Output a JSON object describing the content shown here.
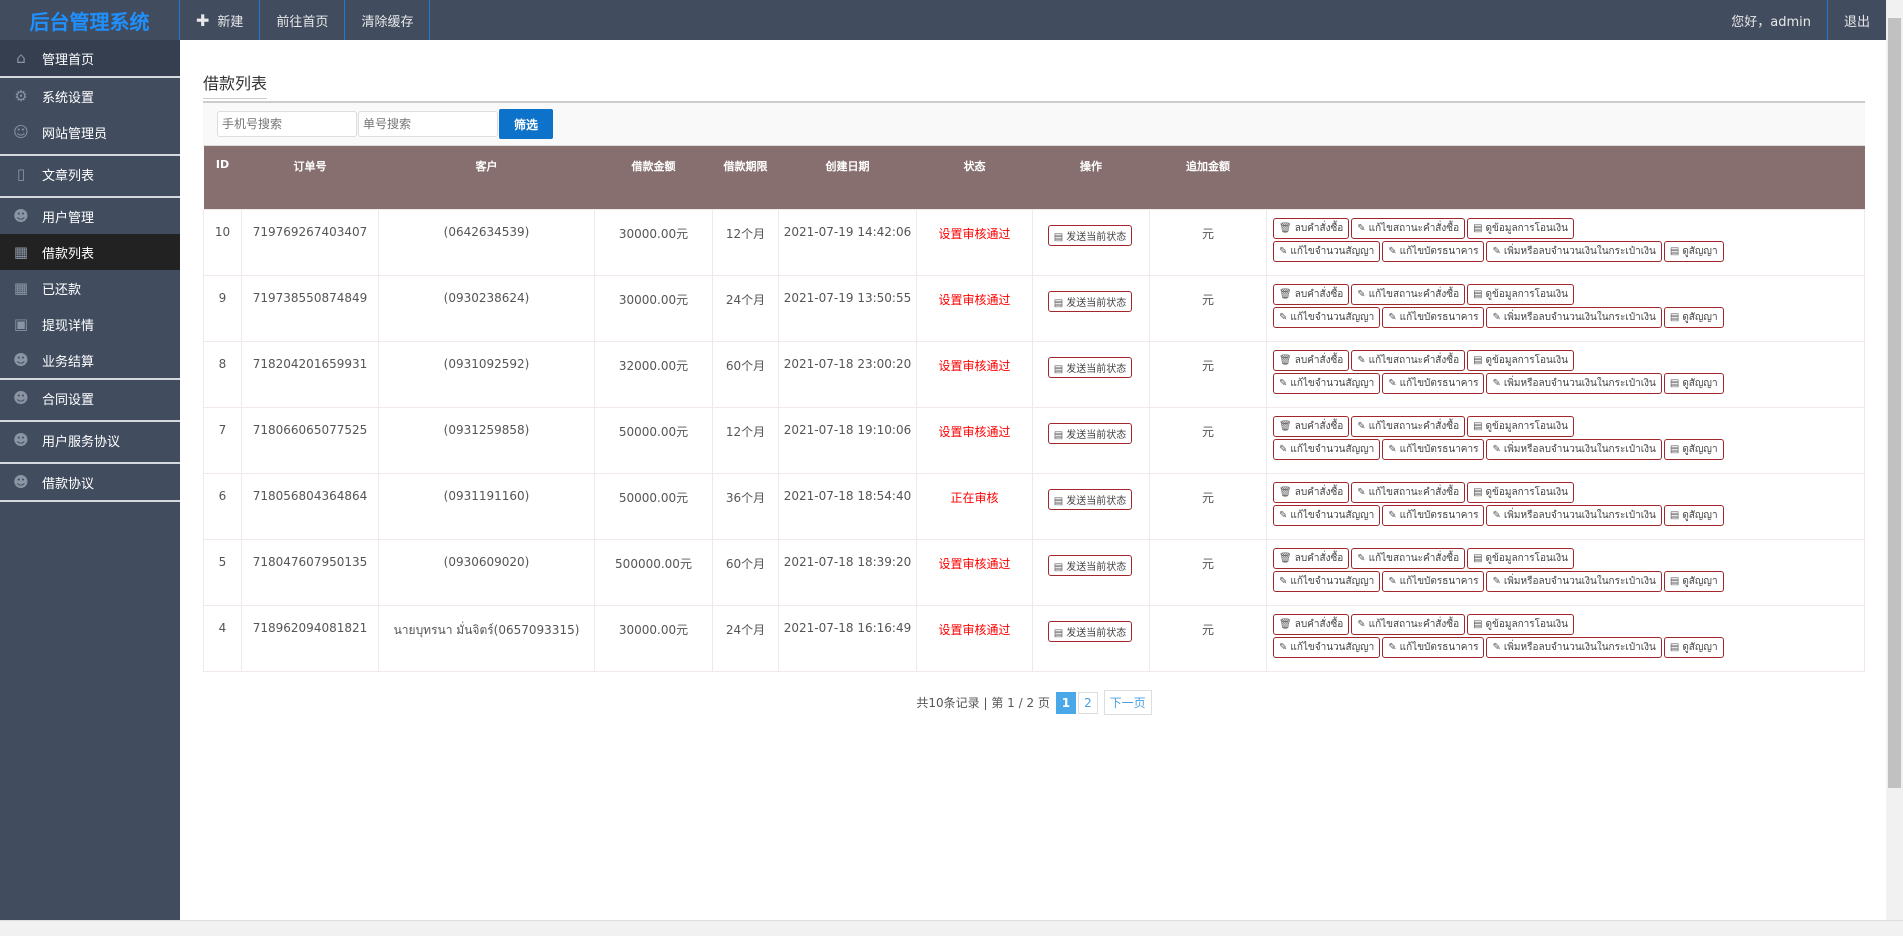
{
  "header": {
    "logo": "后台管理系统",
    "nav": [
      "新建",
      "前往首页",
      "清除缓存"
    ],
    "greeting": "您好，admin",
    "logout": "退出"
  },
  "sidebar": {
    "items": [
      {
        "label": "管理首页",
        "icon": "home-icon"
      },
      {
        "label": "系统设置",
        "icon": "gear-icon"
      },
      {
        "label": "网站管理员",
        "icon": "user-icon"
      },
      {
        "label": "文章列表",
        "icon": "file-icon"
      },
      {
        "label": "用户管理",
        "icon": "users-icon"
      },
      {
        "label": "借款列表",
        "icon": "grid-icon",
        "active": true
      },
      {
        "label": "已还款",
        "icon": "grid-icon"
      },
      {
        "label": "提现详情",
        "icon": "inbox-icon"
      },
      {
        "label": "业务结算",
        "icon": "users-icon"
      },
      {
        "label": "合同设置",
        "icon": "users-icon"
      },
      {
        "label": "用户服务协议",
        "icon": "users-icon"
      },
      {
        "label": "借款协议",
        "icon": "users-icon"
      }
    ]
  },
  "page": {
    "title": "借款列表",
    "search_phone_placeholder": "手机号搜索",
    "search_order_placeholder": "单号搜索",
    "filter_button": "筛选"
  },
  "table": {
    "headers": [
      "ID",
      "订单号",
      "客户",
      "借款金额",
      "借款期限",
      "创建日期",
      "状态",
      "操作",
      "追加金额",
      ""
    ],
    "send_status": "发送当前状态",
    "actions": [
      "ลบคำสั่งซื้อ",
      "แก้ไขสถานะคำสั่งซื้อ",
      "ดูข้อมูลการโอนเงิน",
      "แก้ไขจำนวนสัญญา",
      "แก้ไขบัตรธนาคาร",
      "เพิ่มหรือลบจำนวนเงินในกระเป๋าเงิน",
      "ดูสัญญา"
    ],
    "rows": [
      [
        "10",
        "719769267403407",
        "(0642634539)",
        "30000.00元",
        "12个月",
        "2021-07-19 14:42:06",
        "设置审核通过",
        "元"
      ],
      [
        "9",
        "719738550874849",
        "(0930238624)",
        "30000.00元",
        "24个月",
        "2021-07-19 13:50:55",
        "设置审核通过",
        "元"
      ],
      [
        "8",
        "718204201659931",
        "(0931092592)",
        "32000.00元",
        "60个月",
        "2021-07-18 23:00:20",
        "设置审核通过",
        "元"
      ],
      [
        "7",
        "718066065077525",
        "(0931259858)",
        "50000.00元",
        "12个月",
        "2021-07-18 19:10:06",
        "设置审核通过",
        "元"
      ],
      [
        "6",
        "718056804364864",
        "(0931191160)",
        "50000.00元",
        "36个月",
        "2021-07-18 18:54:40",
        "正在审核",
        "元"
      ],
      [
        "5",
        "718047607950135",
        "(0930609020)",
        "500000.00元",
        "60个月",
        "2021-07-18 18:39:20",
        "设置审核通过",
        "元"
      ],
      [
        "4",
        "718962094081821",
        "นายบุทรนา มั่นจิตร์(0657093315)",
        "30000.00元",
        "24个月",
        "2021-07-18 16:16:49",
        "设置审核通过",
        "元"
      ]
    ]
  },
  "pager": {
    "summary": "共10条记录 | 第 1 / 2 页",
    "pages": [
      "1",
      "2"
    ],
    "next": "下一页",
    "current": "1"
  },
  "colors": {
    "header_bg": "#414d5f",
    "table_head": "#876f6f",
    "status_red": "#ff0000",
    "filter_btn": "#0d72c9"
  }
}
